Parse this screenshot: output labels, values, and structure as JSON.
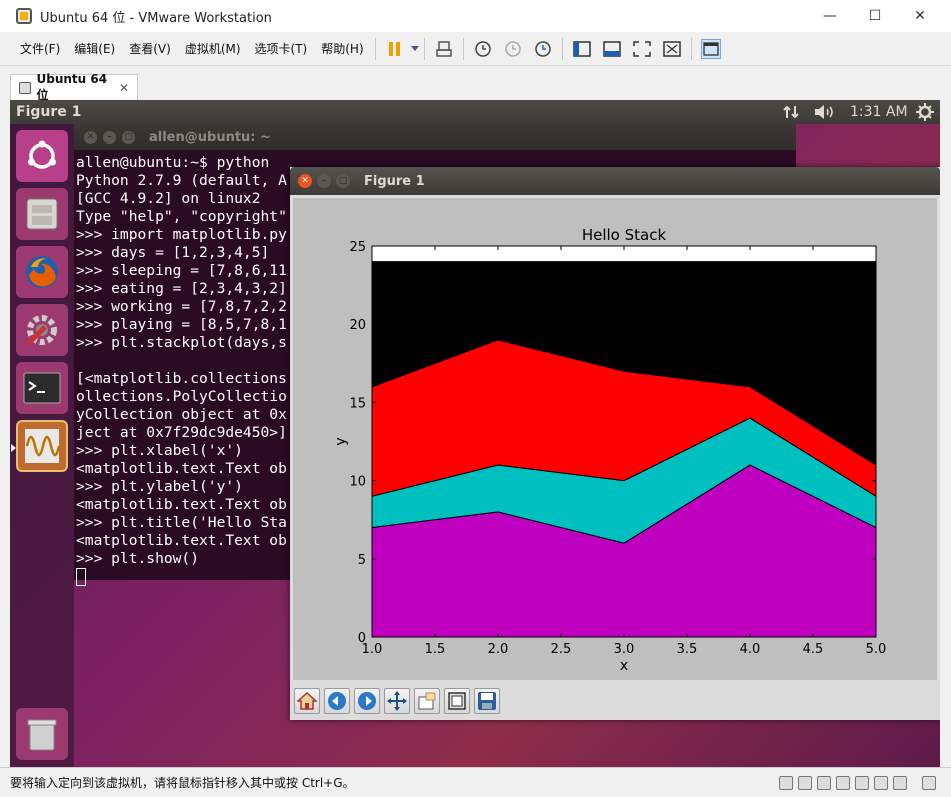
{
  "window": {
    "title": "Ubuntu 64 位 - VMware Workstation",
    "minimize": "—",
    "maximize": "☐",
    "close": "✕"
  },
  "menu": [
    "文件(F)",
    "编辑(E)",
    "查看(V)",
    "虚拟机(M)",
    "选项卡(T)",
    "帮助(H)"
  ],
  "tab": {
    "label": "Ubuntu 64 位",
    "close": "✕"
  },
  "ubuntu_panel": {
    "title": "Figure 1",
    "clock": "1:31 AM"
  },
  "terminal": {
    "title": "allen@ubuntu: ~",
    "lines": [
      "allen@ubuntu:~$ python",
      "Python 2.7.9 (default, A",
      "[GCC 4.9.2] on linux2",
      "Type \"help\", \"copyright\"",
      ">>> import matplotlib.py",
      ">>> days = [1,2,3,4,5]",
      ">>> sleeping = [7,8,6,11",
      ">>> eating = [2,3,4,3,2]",
      ">>> working = [7,8,7,2,2",
      ">>> playing = [8,5,7,8,1",
      ">>> plt.stackplot(days,s",
      "",
      "[<matplotlib.collections",
      "ollections.PolyCollectio",
      "yCollection object at 0x",
      "ject at 0x7f29dc9de450>]",
      ">>> plt.xlabel('x')",
      "<matplotlib.text.Text ob",
      ">>> plt.ylabel('y')",
      "<matplotlib.text.Text ob",
      ">>> plt.title('Hello Sta",
      "<matplotlib.text.Text ob",
      ">>> plt.show()"
    ]
  },
  "figure": {
    "title": "Figure 1"
  },
  "chart_data": {
    "type": "area",
    "title": "Hello Stack",
    "xlabel": "x",
    "ylabel": "y",
    "x": [
      1,
      2,
      3,
      4,
      5
    ],
    "xlim": [
      1.0,
      5.0
    ],
    "ylim": [
      0,
      25
    ],
    "xticks": [
      "1.0",
      "1.5",
      "2.0",
      "2.5",
      "3.0",
      "3.5",
      "4.0",
      "4.5",
      "5.0"
    ],
    "yticks": [
      "0",
      "5",
      "10",
      "15",
      "20",
      "25"
    ],
    "series": [
      {
        "values": [
          7,
          8,
          6,
          11,
          7
        ],
        "color": "#bf00bf"
      },
      {
        "values": [
          2,
          3,
          4,
          3,
          2
        ],
        "color": "#00bfbf"
      },
      {
        "values": [
          7,
          8,
          7,
          2,
          2
        ],
        "color": "#ff0000"
      },
      {
        "values": [
          8,
          5,
          7,
          8,
          13
        ],
        "color": "#000000"
      }
    ]
  },
  "status": {
    "text": "要将输入定向到该虚拟机，请将鼠标指针移入其中或按 Ctrl+G。"
  }
}
